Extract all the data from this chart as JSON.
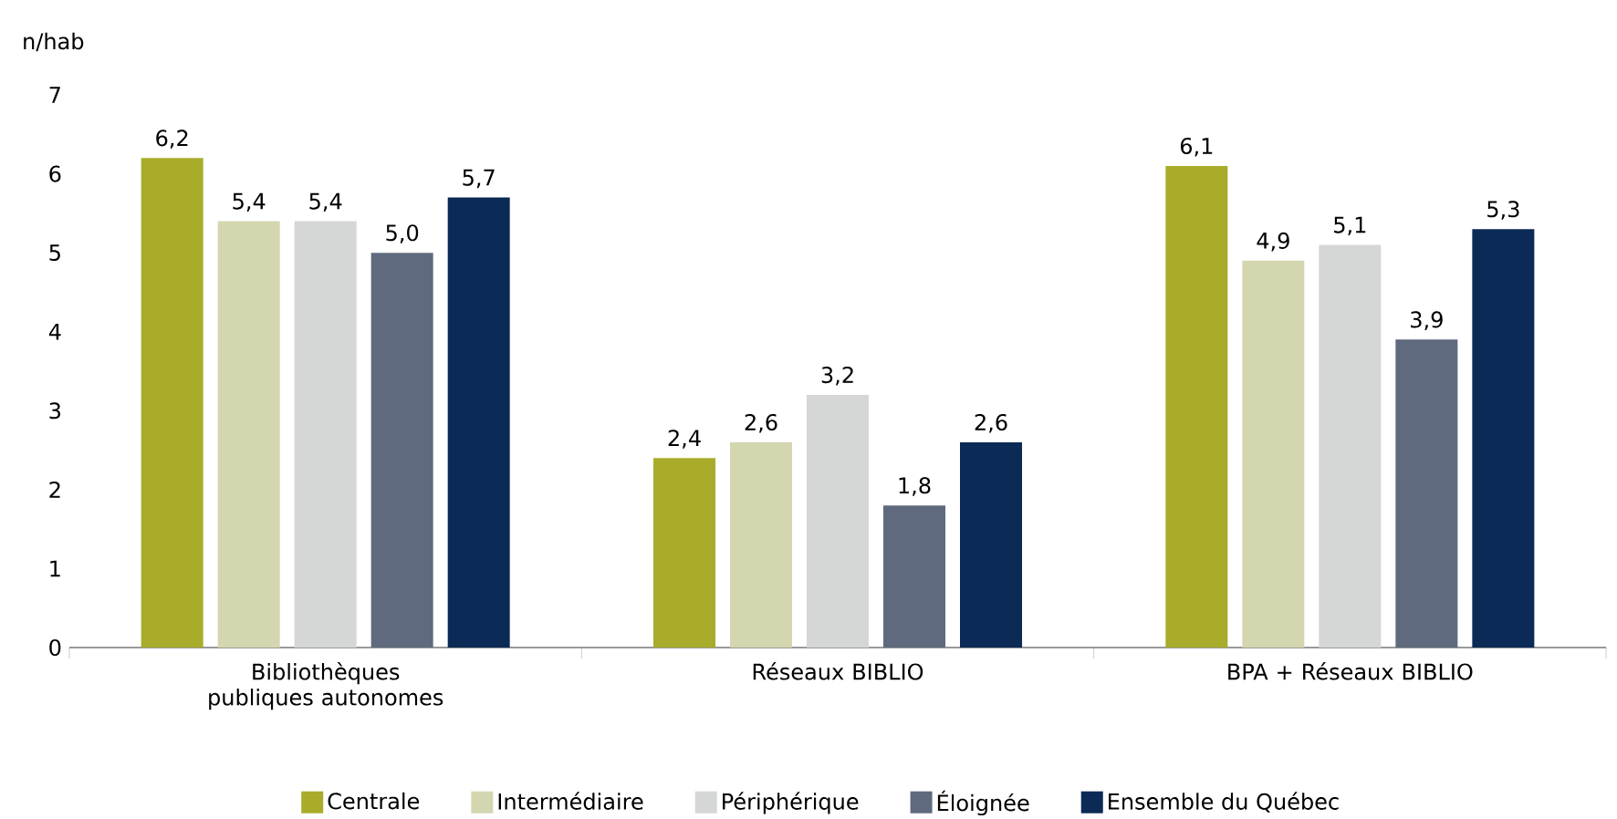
{
  "chart_data": {
    "type": "bar",
    "ylabel": "n/hab",
    "categories": [
      "Bibliothèques publiques autonomes",
      "Réseaux BIBLIO",
      "BPA + Réseaux BIBLIO"
    ],
    "series": [
      {
        "name": "Centrale",
        "color": "#a8ac2a",
        "values": [
          6.2,
          2.4,
          6.1
        ],
        "value_labels": [
          "6,2",
          "2,4",
          "6,1"
        ]
      },
      {
        "name": "Intermédiaire",
        "color": "#d4d6b0",
        "values": [
          5.4,
          2.6,
          4.9
        ],
        "value_labels": [
          "5,4",
          "2,6",
          "4,9"
        ]
      },
      {
        "name": "Périphérique",
        "color": "#d5d6d6",
        "values": [
          5.4,
          3.2,
          5.1
        ],
        "value_labels": [
          "5,4",
          "3,2",
          "5,1"
        ]
      },
      {
        "name": "Éloignée",
        "color": "#5f6a7e",
        "values": [
          5.0,
          1.8,
          3.9
        ],
        "value_labels": [
          "5,0",
          "1,8",
          "3,9"
        ]
      },
      {
        "name": "Ensemble du Québec",
        "color": "#0b2a55",
        "values": [
          5.7,
          2.6,
          5.3
        ],
        "value_labels": [
          "5,7",
          "2,6",
          "5,3"
        ]
      }
    ],
    "ylim": [
      0,
      7
    ],
    "yticks": [
      0,
      1,
      2,
      3,
      4,
      5,
      6,
      7
    ],
    "legend": "bottom"
  }
}
